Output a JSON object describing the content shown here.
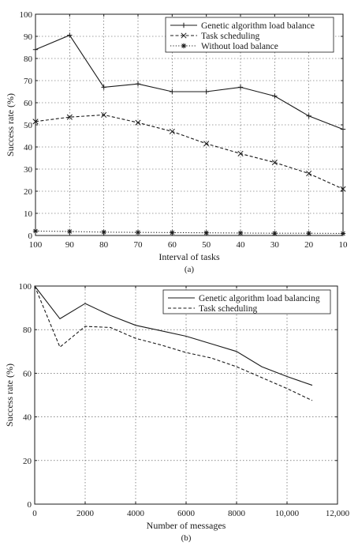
{
  "chart_data": [
    {
      "type": "line",
      "panel_label": "(a)",
      "xlabel": "Interval of tasks",
      "ylabel": "Success rate (%)",
      "x": [
        100,
        90,
        80,
        70,
        60,
        50,
        40,
        30,
        20,
        10
      ],
      "x_ticks": [
        "100",
        "90",
        "80",
        "70",
        "60",
        "50",
        "40",
        "30",
        "20",
        "10"
      ],
      "x_reversed": true,
      "xlim": [
        100,
        10
      ],
      "ylim": [
        0,
        100
      ],
      "y_ticks": [
        "0",
        "10",
        "20",
        "30",
        "40",
        "50",
        "60",
        "70",
        "80",
        "90",
        "100"
      ],
      "grid": true,
      "legend_position": "top-right",
      "series": [
        {
          "name": "Genetic algorithm load balance",
          "marker": "+",
          "line": "solid",
          "values": [
            84,
            90.5,
            67,
            68.5,
            65,
            65,
            67,
            63,
            54,
            48
          ]
        },
        {
          "name": "Task scheduling",
          "marker": "x",
          "line": "dashed",
          "values": [
            51.5,
            53.5,
            54.5,
            51,
            47,
            41.5,
            37,
            33,
            28,
            21
          ]
        },
        {
          "name": "Without load balance",
          "marker": "*",
          "line": "dotted",
          "values": [
            2,
            1.8,
            1.5,
            1.4,
            1.3,
            1.2,
            1.1,
            1.0,
            1.0,
            0.9
          ]
        }
      ]
    },
    {
      "type": "line",
      "panel_label": "(b)",
      "xlabel": "Number of messages",
      "ylabel": "Success rate (%)",
      "xlim": [
        0,
        12000
      ],
      "ylim": [
        0,
        100
      ],
      "x_ticks": [
        "0",
        "2000",
        "4000",
        "6000",
        "8000",
        "10,000",
        "12,000"
      ],
      "y_ticks": [
        "0",
        "20",
        "40",
        "60",
        "80",
        "100"
      ],
      "grid": true,
      "legend_position": "top-right",
      "series": [
        {
          "name": "Genetic algorithm load balancing",
          "line": "solid",
          "x": [
            0,
            1000,
            2000,
            3000,
            4000,
            5000,
            6000,
            7000,
            8000,
            9000,
            10000,
            11000
          ],
          "values": [
            100,
            85,
            92,
            86.5,
            82,
            79.5,
            77,
            73.5,
            70,
            63,
            58.5,
            54.5
          ]
        },
        {
          "name": "Task scheduling",
          "line": "dashed",
          "x": [
            0,
            1000,
            2000,
            3000,
            4000,
            5000,
            6000,
            7000,
            8000,
            9000,
            10000,
            11000
          ],
          "values": [
            100,
            72,
            81.5,
            81,
            76,
            73,
            69.5,
            67,
            63,
            58,
            53,
            47.5
          ]
        }
      ]
    }
  ]
}
